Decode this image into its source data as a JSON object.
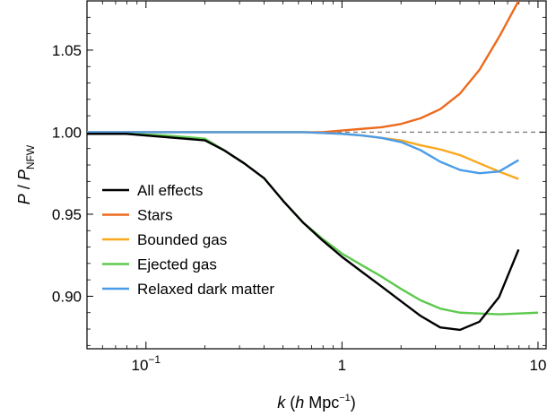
{
  "chart_data": {
    "type": "line",
    "xlabel": {
      "k": "k",
      "open": " (",
      "h": "h",
      "rest": " Mpc",
      "sup": "−1",
      "close": ")"
    },
    "ylabel": {
      "P": "P",
      "slash": " / ",
      "P2": "P",
      "sub": "NFW"
    },
    "xscale": "log",
    "xlim": [
      0.05,
      11
    ],
    "ylim": [
      0.868,
      1.08
    ],
    "grid": false,
    "legend_position": "lower-left",
    "x_ticks": [
      {
        "value": 0.1,
        "base": "10",
        "exp": "−1"
      },
      {
        "value": 1,
        "base": "1",
        "exp": ""
      },
      {
        "value": 10,
        "base": "10",
        "exp": ""
      }
    ],
    "y_ticks": [
      {
        "value": 0.9,
        "label": "0.90"
      },
      {
        "value": 0.95,
        "label": "0.95"
      },
      {
        "value": 1.0,
        "label": "1.00"
      },
      {
        "value": 1.05,
        "label": "1.05"
      }
    ],
    "reference_line": {
      "y": 1.0,
      "style": "dashed",
      "color": "#808080"
    },
    "x": [
      0.05,
      0.0795,
      0.126,
      0.2,
      0.25,
      0.317,
      0.4,
      0.502,
      0.632,
      0.796,
      1.0,
      1.26,
      1.59,
      2.0,
      2.52,
      3.17,
      4.0,
      5.03,
      6.33,
      7.96,
      10.0
    ],
    "series": [
      {
        "name": "All effects",
        "color": "#000000",
        "values": [
          0.999,
          0.999,
          0.997,
          0.995,
          0.989,
          0.981,
          0.972,
          0.958,
          0.945,
          0.934,
          0.924,
          0.915,
          0.906,
          0.897,
          0.888,
          0.881,
          0.8795,
          0.8845,
          0.8995,
          0.9285,
          null
        ]
      },
      {
        "name": "Stars",
        "color": "#ED6A1E",
        "values": [
          1.0,
          1.0,
          1.0,
          1.0,
          1.0,
          1.0,
          1.0,
          1.0,
          1.0,
          1.0,
          1.001,
          1.002,
          1.003,
          1.005,
          1.0085,
          1.014,
          1.0235,
          1.038,
          1.058,
          1.08,
          null
        ]
      },
      {
        "name": "Bounded gas",
        "color": "#F9A81F",
        "values": [
          1.0,
          1.0,
          1.0,
          1.0,
          1.0,
          1.0,
          1.0,
          1.0,
          1.0,
          0.9995,
          0.999,
          0.998,
          0.9965,
          0.995,
          0.992,
          0.9895,
          0.986,
          0.981,
          0.976,
          0.9715,
          null
        ]
      },
      {
        "name": "Ejected gas",
        "color": "#5DC94E",
        "values": [
          0.999,
          0.999,
          0.998,
          0.996,
          0.989,
          0.981,
          0.972,
          0.958,
          0.945,
          0.935,
          0.926,
          0.919,
          0.912,
          0.9045,
          0.8975,
          0.8925,
          0.89,
          0.8895,
          0.889,
          0.8895,
          0.89
        ]
      },
      {
        "name": "Relaxed dark matter",
        "color": "#4A9CE8",
        "values": [
          1.0,
          1.0,
          1.0,
          1.0,
          1.0,
          1.0,
          1.0,
          1.0,
          1.0,
          0.9995,
          0.999,
          0.998,
          0.9965,
          0.994,
          0.989,
          0.982,
          0.977,
          0.975,
          0.976,
          0.983,
          null
        ]
      }
    ]
  }
}
